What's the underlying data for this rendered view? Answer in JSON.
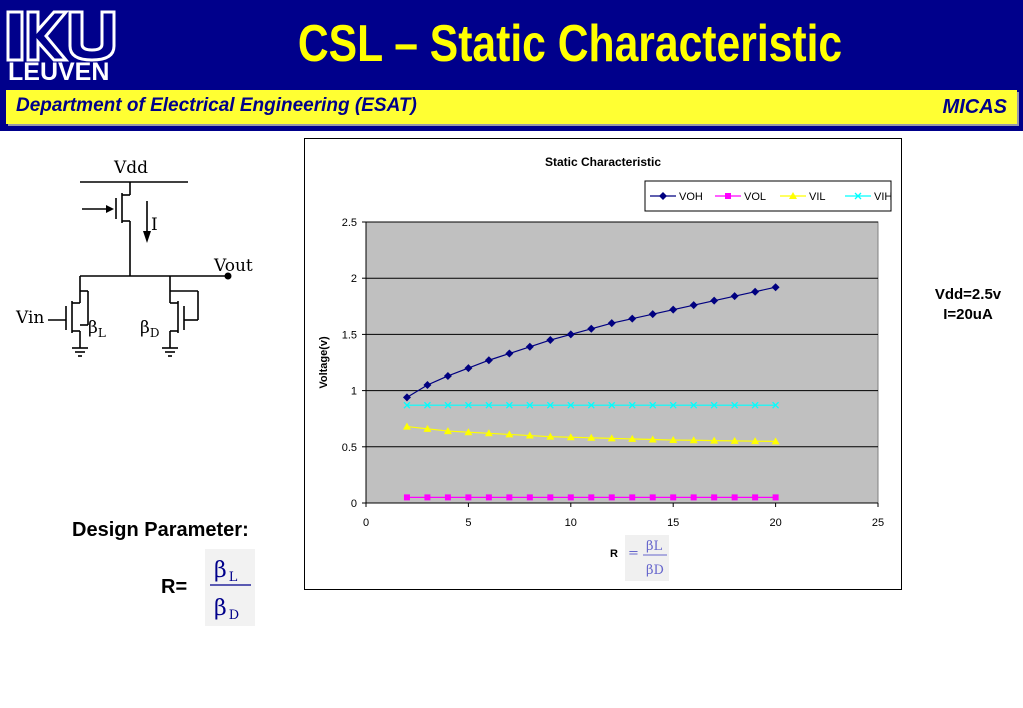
{
  "header": {
    "logo_text": "LEUVEN",
    "title": "CSL – Static Characteristic",
    "department": "Department of Electrical Engineering (ESAT)",
    "group": "MICAS"
  },
  "schematic": {
    "vdd_label": "Vdd",
    "current_label": "I",
    "vout_label": "Vout",
    "vin_label": "Vin",
    "beta_symbol": "β",
    "beta_l_sub": "L",
    "beta_d_sub": "D"
  },
  "conditions": {
    "vdd": "Vdd=2.5v",
    "current": "I=20uA"
  },
  "design": {
    "label": "Design Parameter:",
    "r_label": "R=",
    "beta_symbol": "β",
    "num_sub": "L",
    "den_sub": "D"
  },
  "chart_data": {
    "type": "line",
    "title": "Static Characteristic",
    "xlabel_prefix": "R",
    "xlabel_eq": "=",
    "xlabel_num": "βL",
    "xlabel_den": "βD",
    "ylabel": "Voltage(v)",
    "xlim": [
      0,
      25
    ],
    "ylim": [
      0,
      2.5
    ],
    "xticks": [
      0,
      5,
      10,
      15,
      20,
      25
    ],
    "yticks": [
      0,
      0.5,
      1,
      1.5,
      2,
      2.5
    ],
    "grid": true,
    "legend_position": "top-right",
    "x": [
      2,
      3,
      4,
      5,
      6,
      7,
      8,
      9,
      10,
      11,
      12,
      13,
      14,
      15,
      16,
      17,
      18,
      19,
      20
    ],
    "series": [
      {
        "name": "VOH",
        "color": "#000080",
        "marker": "diamond",
        "values": [
          0.94,
          1.05,
          1.13,
          1.2,
          1.27,
          1.33,
          1.39,
          1.45,
          1.5,
          1.55,
          1.6,
          1.64,
          1.68,
          1.72,
          1.76,
          1.8,
          1.84,
          1.88,
          1.92
        ]
      },
      {
        "name": "VOL",
        "color": "#ff00ff",
        "marker": "square",
        "values": [
          0.05,
          0.05,
          0.05,
          0.05,
          0.05,
          0.05,
          0.05,
          0.05,
          0.05,
          0.05,
          0.05,
          0.05,
          0.05,
          0.05,
          0.05,
          0.05,
          0.05,
          0.05,
          0.05
        ]
      },
      {
        "name": "VIL",
        "color": "#ffff00",
        "marker": "triangle",
        "values": [
          0.68,
          0.66,
          0.64,
          0.63,
          0.62,
          0.61,
          0.6,
          0.59,
          0.585,
          0.58,
          0.575,
          0.57,
          0.565,
          0.56,
          0.558,
          0.555,
          0.553,
          0.55,
          0.548
        ]
      },
      {
        "name": "VIH",
        "color": "#00ffff",
        "marker": "x",
        "values": [
          0.87,
          0.87,
          0.87,
          0.87,
          0.87,
          0.87,
          0.87,
          0.87,
          0.87,
          0.87,
          0.87,
          0.87,
          0.87,
          0.87,
          0.87,
          0.87,
          0.87,
          0.87,
          0.87
        ]
      }
    ]
  }
}
